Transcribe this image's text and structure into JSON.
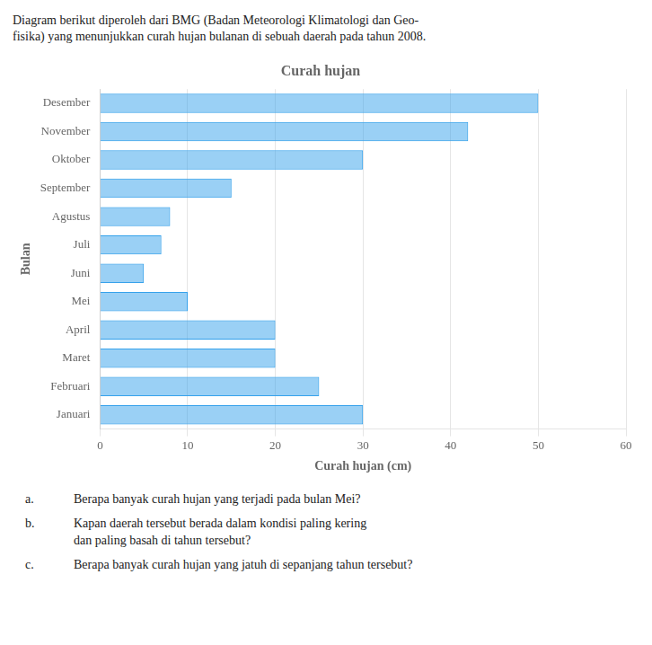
{
  "chart_data": {
    "type": "bar",
    "orientation": "horizontal",
    "title": "Curah hujan",
    "subtitle": [
      "Diagram berikut diperoleh dari BMG (Badan Meteorologi Klimatologi dan Geo-",
      "fisika) yang menunjukkan curah hujan bulanan di sebuah daerah pada tahun 2008."
    ],
    "xlabel": "Curah hujan (cm)",
    "ylabel": "Bulan",
    "categories": [
      "Januari",
      "Februari",
      "Maret",
      "April",
      "Mei",
      "Juni",
      "Juli",
      "Agustus",
      "September",
      "Oktober",
      "November",
      "Desember"
    ],
    "values": [
      30,
      25,
      20,
      20,
      10,
      5,
      7,
      8,
      15,
      30,
      42,
      50
    ],
    "xlim": [
      0,
      60
    ],
    "xticks": [
      0,
      10,
      20,
      30,
      40,
      50,
      60
    ],
    "grid": true,
    "annotations": [
      [
        "a.",
        "Berapa banyak curah hujan yang terjadi pada bulan Mei?"
      ],
      [
        "b.",
        "Kapan daerah tersebut berada dalam kondisi paling kering",
        "dan paling basah di tahun tersebut?"
      ],
      [
        "c.",
        "Berapa banyak curah hujan yang jatuh di sepanjang tahun tersebut?"
      ]
    ]
  }
}
